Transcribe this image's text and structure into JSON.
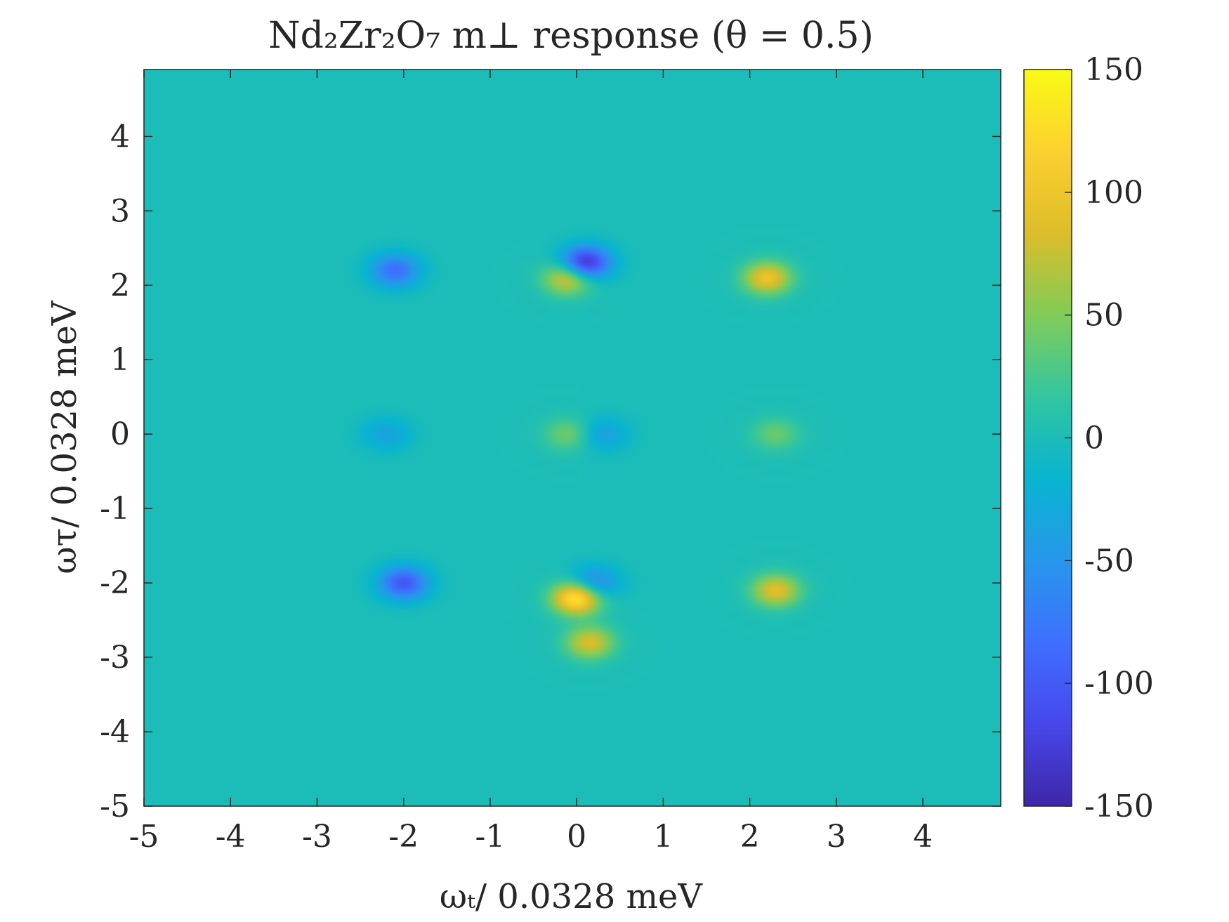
{
  "chart_data": {
    "type": "heatmap",
    "title": "Nd₂Zr₂O₇ m⊥ response (θ = 0.5)",
    "xlabel": "ωₜ/ 0.0328 meV",
    "ylabel": "ωτ/ 0.0328 meV",
    "xlim": [
      -5,
      4.9
    ],
    "ylim": [
      -5,
      4.9
    ],
    "x_ticks": [
      -5,
      -4,
      -3,
      -2,
      -1,
      0,
      1,
      2,
      3,
      4
    ],
    "y_ticks": [
      -5,
      -4,
      -3,
      -2,
      -1,
      0,
      1,
      2,
      3,
      4
    ],
    "x_tick_labels": [
      "-5",
      "-4",
      "-3",
      "-2",
      "-1",
      "0",
      "1",
      "2",
      "3",
      "4"
    ],
    "y_tick_labels": [
      "-5",
      "-4",
      "-3",
      "-2",
      "-1",
      "0",
      "1",
      "2",
      "3",
      "4"
    ],
    "colorbar": {
      "limits": [
        -150,
        150
      ],
      "ticks": [
        -150,
        -100,
        -50,
        0,
        50,
        100,
        150
      ],
      "tick_labels": [
        "-150",
        "-100",
        "-50",
        "0",
        "50",
        "100",
        "150"
      ],
      "colormap": "parula"
    },
    "background_value": 0,
    "features": [
      {
        "x": 0.1,
        "y": 2.3,
        "value": -145
      },
      {
        "x": -0.1,
        "y": 2.1,
        "value": 95
      },
      {
        "x": 2.2,
        "y": 2.1,
        "value": 100
      },
      {
        "x": -2.1,
        "y": 2.2,
        "value": -85
      },
      {
        "x": -2.0,
        "y": -2.0,
        "value": -105
      },
      {
        "x": 0.0,
        "y": -2.2,
        "value": 145
      },
      {
        "x": 0.15,
        "y": -2.8,
        "value": 85
      },
      {
        "x": 0.2,
        "y": -2.0,
        "value": -70
      },
      {
        "x": 2.3,
        "y": -2.1,
        "value": 90
      },
      {
        "x": -0.1,
        "y": 0.0,
        "value": 45
      },
      {
        "x": 0.3,
        "y": 0.0,
        "value": -40
      },
      {
        "x": 2.3,
        "y": 0.0,
        "value": 40
      },
      {
        "x": -2.2,
        "y": 0.0,
        "value": -35
      }
    ]
  }
}
